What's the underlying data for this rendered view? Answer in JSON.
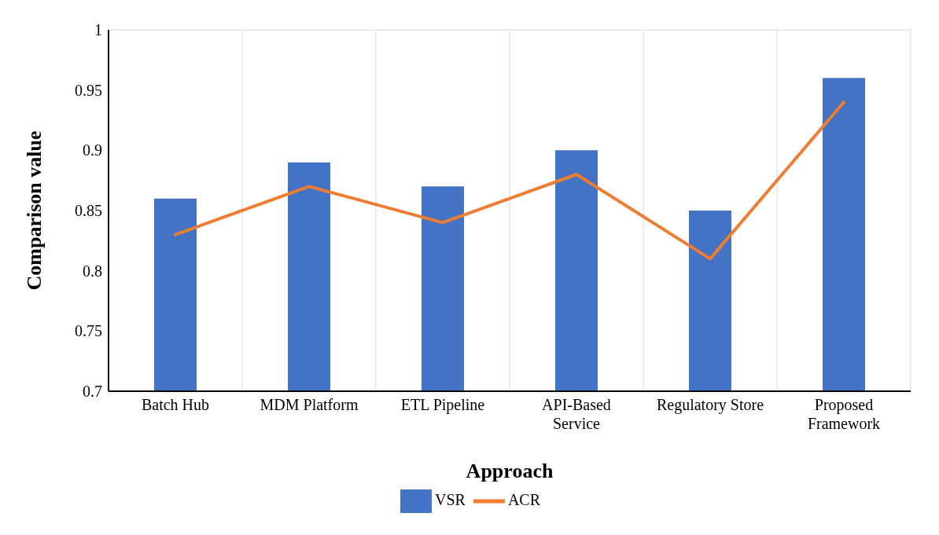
{
  "chart_data": {
    "type": "bar",
    "xlabel": "Approach",
    "ylabel": "Comparison value",
    "categories": [
      "Batch Hub",
      "MDM Platform",
      "ETL Pipeline",
      "API-Based Service",
      "Regulatory Store",
      "Proposed Framework"
    ],
    "series": [
      {
        "name": "VSR",
        "color": "#4472c4",
        "values": [
          0.86,
          0.89,
          0.87,
          0.9,
          0.85,
          0.96
        ]
      },
      {
        "name": "ACR",
        "type": "line",
        "color": "#ed7d31",
        "values": [
          0.83,
          0.87,
          0.84,
          0.88,
          0.81,
          0.94
        ]
      }
    ],
    "ylim": [
      0.7,
      1
    ],
    "yticks": [
      0.7,
      0.75,
      0.8,
      0.85,
      0.9,
      0.95,
      1
    ],
    "grid": true,
    "legend": "bottom",
    "marker": "none",
    "line_style": "solid"
  }
}
